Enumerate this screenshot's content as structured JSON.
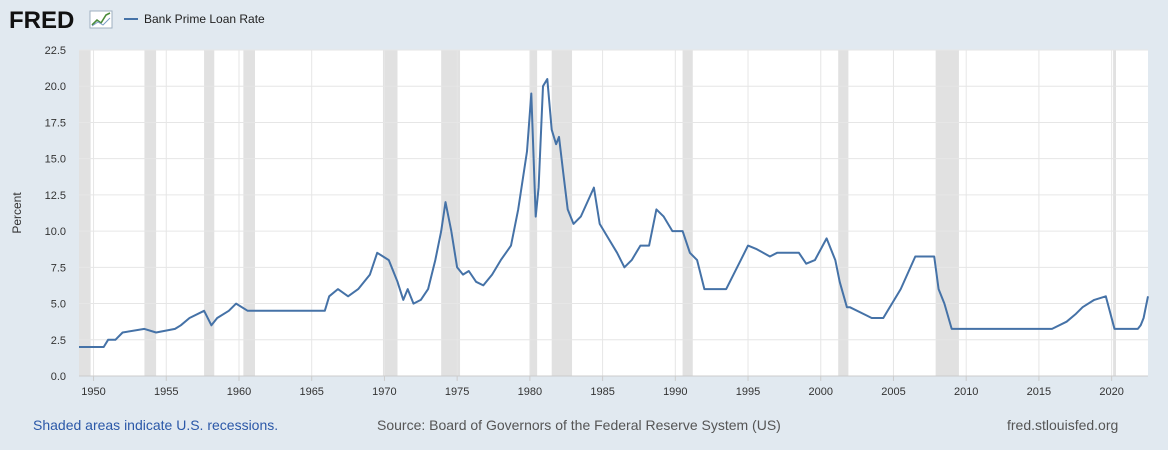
{
  "brand": {
    "logo_text": "FRED"
  },
  "footer": {
    "recession_note": "Shaded areas indicate U.S. recessions.",
    "source": "Source: Board of Governors of the Federal Reserve System (US)",
    "site": "fred.stlouisfed.org"
  },
  "colors": {
    "background": "#e1e9f0",
    "plot_background": "#ffffff",
    "series_line": "#4572a7",
    "recession_band": "#e1e1e1",
    "link_text": "#2b58a8"
  },
  "chart_data": {
    "type": "line",
    "title": "",
    "xlabel": "",
    "ylabel": "Percent",
    "xlim": [
      1949.0,
      2022.5
    ],
    "ylim": [
      0,
      22.5
    ],
    "y_ticks": [
      "0.0",
      "2.5",
      "5.0",
      "7.5",
      "10.0",
      "12.5",
      "15.0",
      "17.5",
      "20.0",
      "22.5"
    ],
    "x_ticks": [
      "1950",
      "1955",
      "1960",
      "1965",
      "1970",
      "1975",
      "1980",
      "1985",
      "1990",
      "1995",
      "2000",
      "2005",
      "2010",
      "2015",
      "2020"
    ],
    "grid": true,
    "legend": {
      "placement": "top-left",
      "entries": [
        "Bank Prime Loan Rate"
      ]
    },
    "recessions": [
      [
        1948.9,
        1949.8
      ],
      [
        1953.5,
        1954.3
      ],
      [
        1957.6,
        1958.3
      ],
      [
        1960.3,
        1961.1
      ],
      [
        1969.9,
        1970.9
      ],
      [
        1973.9,
        1975.2
      ],
      [
        1980.0,
        1980.5
      ],
      [
        1981.5,
        1982.9
      ],
      [
        1990.5,
        1991.2
      ],
      [
        2001.2,
        2001.9
      ],
      [
        2007.9,
        2009.5
      ],
      [
        2020.1,
        2020.3
      ]
    ],
    "series": [
      {
        "name": "Bank Prime Loan Rate",
        "color": "#4572a7",
        "x": [
          1949.0,
          1950.7,
          1951.0,
          1951.5,
          1952.0,
          1953.5,
          1954.3,
          1955.6,
          1956.0,
          1956.6,
          1957.6,
          1958.1,
          1958.5,
          1959.3,
          1959.8,
          1960.6,
          1965.9,
          1966.2,
          1966.8,
          1967.5,
          1968.2,
          1969.0,
          1969.5,
          1970.3,
          1970.9,
          1971.3,
          1971.6,
          1972.0,
          1972.5,
          1973.0,
          1973.5,
          1973.9,
          1974.2,
          1974.6,
          1975.0,
          1975.4,
          1975.8,
          1976.3,
          1976.8,
          1977.4,
          1978.0,
          1978.7,
          1979.2,
          1979.8,
          1980.1,
          1980.4,
          1980.6,
          1980.9,
          1981.2,
          1981.5,
          1981.8,
          1982.0,
          1982.3,
          1982.6,
          1983.0,
          1983.5,
          1984.4,
          1984.8,
          1985.4,
          1986.0,
          1986.5,
          1987.0,
          1987.6,
          1988.2,
          1988.7,
          1989.2,
          1989.8,
          1990.5,
          1991.0,
          1991.5,
          1992.0,
          1993.5,
          1994.0,
          1994.5,
          1995.0,
          1995.6,
          1996.5,
          1997.0,
          1998.5,
          1999.0,
          1999.6,
          2000.4,
          2001.0,
          2001.3,
          2001.8,
          2002.0,
          2003.0,
          2003.5,
          2004.3,
          2005.5,
          2006.5,
          2007.8,
          2008.1,
          2008.5,
          2009.0,
          2015.9,
          2016.9,
          2017.5,
          2018.0,
          2018.8,
          2019.6,
          2020.2,
          2021.8,
          2022.0,
          2022.2,
          2022.5
        ],
        "values": [
          2.0,
          2.0,
          2.5,
          2.5,
          3.0,
          3.25,
          3.0,
          3.25,
          3.5,
          4.0,
          4.5,
          3.5,
          4.0,
          4.5,
          5.0,
          4.5,
          4.5,
          5.5,
          6.0,
          5.5,
          6.0,
          7.0,
          8.5,
          8.0,
          6.5,
          5.25,
          6.0,
          5.0,
          5.25,
          6.0,
          8.0,
          10.0,
          12.0,
          10.0,
          7.5,
          7.0,
          7.25,
          6.5,
          6.25,
          7.0,
          8.0,
          9.0,
          11.5,
          15.5,
          19.5,
          11.0,
          13.0,
          20.0,
          20.5,
          17.0,
          16.0,
          16.5,
          14.0,
          11.5,
          10.5,
          11.0,
          13.0,
          10.5,
          9.5,
          8.5,
          7.5,
          8.0,
          9.0,
          9.0,
          11.5,
          11.0,
          10.0,
          10.0,
          8.5,
          8.0,
          6.0,
          6.0,
          7.0,
          8.0,
          9.0,
          8.75,
          8.25,
          8.5,
          8.5,
          7.75,
          8.0,
          9.5,
          8.0,
          6.5,
          4.75,
          4.75,
          4.25,
          4.0,
          4.0,
          6.0,
          8.25,
          8.25,
          6.0,
          5.0,
          3.25,
          3.25,
          3.75,
          4.25,
          4.75,
          5.25,
          5.5,
          3.25,
          3.25,
          3.5,
          4.0,
          5.5
        ]
      }
    ]
  }
}
